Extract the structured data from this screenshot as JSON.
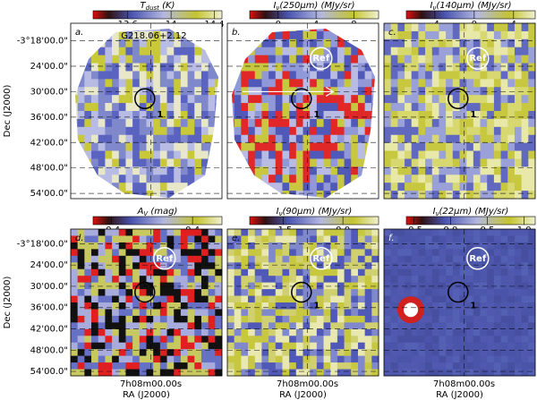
{
  "title": "G218.06+2.12",
  "yaxis": {
    "label": "Dec (J2000)",
    "ticks": [
      "-3°18'00.0\"",
      "24'00.0\"",
      "30'00.0\"",
      "36'00.0\"",
      "42'00.0\"",
      "48'00.0\"",
      "54'00.0\""
    ]
  },
  "xaxis": {
    "label": "RA (J2000)",
    "tick": "7h08m00.00s"
  },
  "ref_label": "Ref",
  "source_label": "1",
  "panels": [
    {
      "letter": "a.",
      "colorbar": {
        "label": [
          "T",
          "dust",
          " (K)"
        ],
        "lim": [
          13.28,
          14.47
        ],
        "ticks": [
          13.6,
          14.0,
          14.4
        ]
      }
    },
    {
      "letter": "b.",
      "colorbar": {
        "label": [
          "I",
          "ν",
          "(250μm) (MJy/sr)"
        ],
        "lim": [
          -3,
          10.6
        ],
        "ticks": [
          0,
          4,
          8
        ]
      }
    },
    {
      "letter": "c.",
      "colorbar": {
        "label": [
          "I",
          "ν",
          "(140μm) (MJy/sr)"
        ],
        "lim": [
          -6.9,
          6.2
        ],
        "ticks": [
          -4,
          0,
          4
        ]
      }
    },
    {
      "letter": "d.",
      "colorbar": {
        "label": [
          "A",
          "V",
          " (mag)"
        ],
        "lim": [
          -0.58,
          0.69
        ],
        "ticks": [
          -0.4,
          0.4
        ]
      }
    },
    {
      "letter": "e.",
      "colorbar": {
        "label": [
          "I",
          "ν",
          "(90μm) (MJy/sr)"
        ],
        "lim": [
          -2.35,
          0.9
        ],
        "ticks": [
          -1.5,
          {
            "value": 0,
            "label": "0.0"
          }
        ]
      }
    },
    {
      "letter": "f.",
      "colorbar": {
        "label": [
          "I",
          "ν",
          "(22μm) (MJy/sr)"
        ],
        "lim": [
          -0.6,
          1.15
        ],
        "ticks": [
          -0.5,
          {
            "value": 0,
            "label": "0.0"
          },
          0.5,
          {
            "value": 1,
            "label": "1.0"
          }
        ]
      }
    }
  ]
}
